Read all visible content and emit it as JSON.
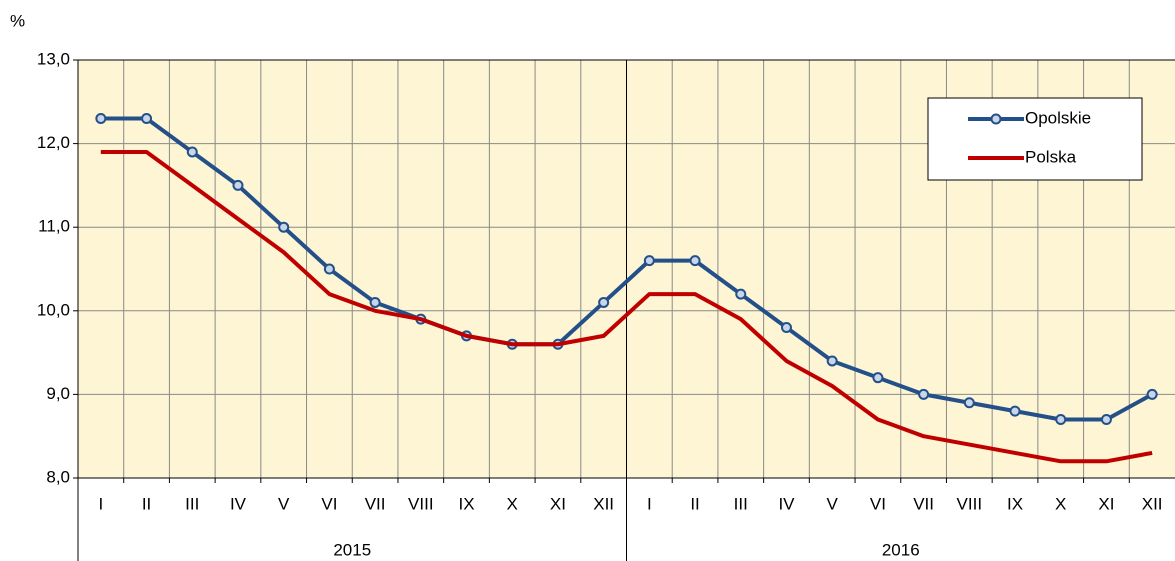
{
  "chart_data": {
    "type": "line",
    "ylabel": "%",
    "categories": [
      "I",
      "II",
      "III",
      "IV",
      "V",
      "VI",
      "VII",
      "VIII",
      "IX",
      "X",
      "XI",
      "XII",
      "I",
      "II",
      "III",
      "IV",
      "V",
      "VI",
      "VII",
      "VIII",
      "IX",
      "X",
      "XI",
      "XII"
    ],
    "category_groups": [
      "2015",
      "2016"
    ],
    "series": [
      {
        "name": "Opolskie",
        "color": "#24508a",
        "marker": true,
        "values": [
          12.3,
          12.3,
          11.9,
          11.5,
          11.0,
          10.5,
          10.1,
          9.9,
          9.7,
          9.6,
          9.6,
          10.1,
          10.6,
          10.6,
          10.2,
          9.8,
          9.4,
          9.2,
          9.0,
          8.9,
          8.8,
          8.7,
          8.7,
          9.0
        ]
      },
      {
        "name": "Polska",
        "color": "#c00000",
        "marker": false,
        "values": [
          11.9,
          11.9,
          11.5,
          11.1,
          10.7,
          10.2,
          10.0,
          9.9,
          9.7,
          9.6,
          9.6,
          9.7,
          10.2,
          10.2,
          9.9,
          9.4,
          9.1,
          8.7,
          8.5,
          8.4,
          8.3,
          8.2,
          8.2,
          8.3
        ]
      }
    ],
    "ylim": [
      8,
      13
    ],
    "yticks": [
      {
        "value": 8,
        "label": "8,0"
      },
      {
        "value": 9,
        "label": "9,0"
      },
      {
        "value": 10,
        "label": "10,0"
      },
      {
        "value": 11,
        "label": "11,0"
      },
      {
        "value": 12,
        "label": "12,0"
      },
      {
        "value": 13,
        "label": "13,0"
      }
    ],
    "grid": true,
    "legend": "top-right"
  }
}
